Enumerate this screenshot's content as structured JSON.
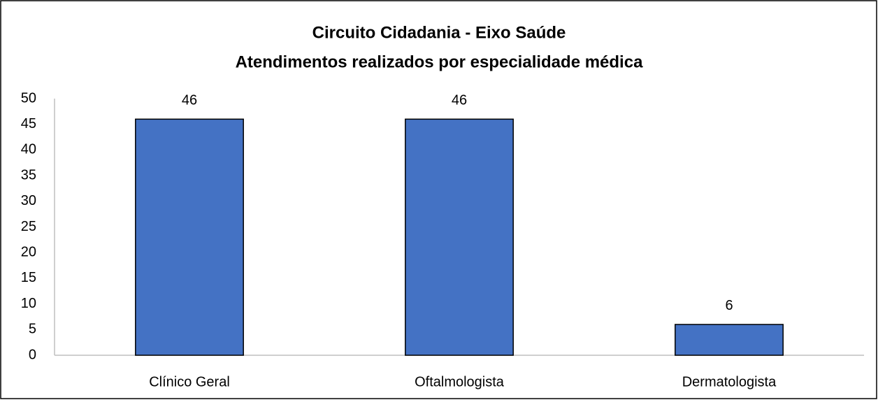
{
  "chart_data": {
    "type": "bar",
    "title": "Circuito Cidadania - Eixo Saúde",
    "subtitle": "Atendimentos realizados por especialidade médica",
    "categories": [
      "Clínico Geral",
      "Oftalmologista",
      "Dermatologista"
    ],
    "values": [
      46,
      46,
      6
    ],
    "color": "#4472c4",
    "ylim": [
      0,
      50
    ],
    "yticks": [
      0,
      5,
      10,
      15,
      20,
      25,
      30,
      35,
      40,
      45,
      50
    ],
    "grid": false
  }
}
